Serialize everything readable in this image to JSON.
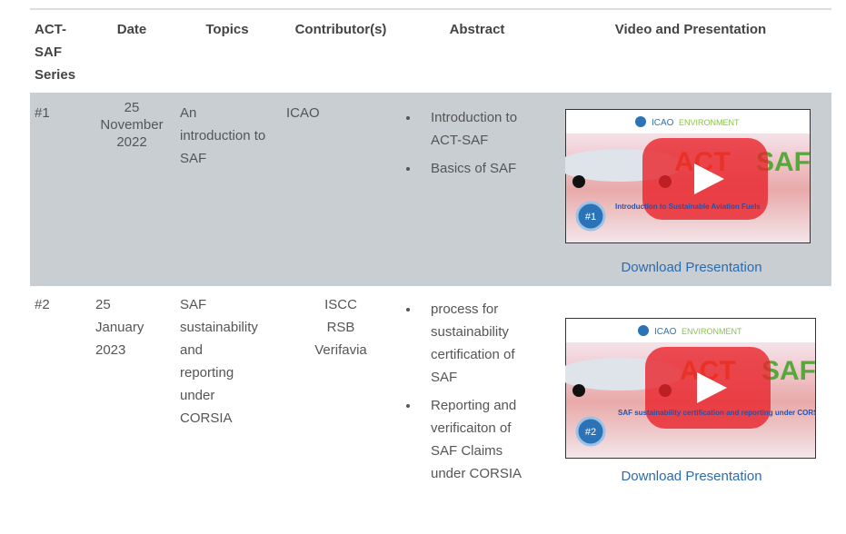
{
  "table": {
    "headers": [
      "ACT-SAF Series",
      "Date",
      "Topics",
      "Contributor(s)",
      "Abstract",
      "Video and Presentation"
    ],
    "rows": [
      {
        "series": "#1",
        "date": "25 November 2022",
        "topics": "An introduction to SAF",
        "contributors": [
          "ICAO"
        ],
        "abstract": [
          "Introduction to ACT-SAF",
          "Basics of SAF"
        ],
        "video": {
          "org": "ICAO",
          "tag": "ENVIRONMENT",
          "brand_left": "ACT",
          "brand_right": "SAF",
          "caption": "Introduction to Sustainable Aviation Fuels",
          "badge": "#1"
        },
        "link": "Download Presentation"
      },
      {
        "series": "#2",
        "date": "25 January 2023",
        "topics": "SAF sustainability and reporting under CORSIA",
        "contributors": [
          "ISCC",
          "RSB",
          "Verifavia"
        ],
        "abstract": [
          "process for sustainability certification of SAF",
          "Reporting and verificaiton of SAF Claims under CORSIA"
        ],
        "video": {
          "org": "ICAO",
          "tag": "ENVIRONMENT",
          "brand_left": "ACT",
          "brand_right": "SAF",
          "caption": "SAF sustainability certification and reporting under CORSIA",
          "badge": "#2"
        },
        "link": "Download Presentation"
      }
    ]
  }
}
